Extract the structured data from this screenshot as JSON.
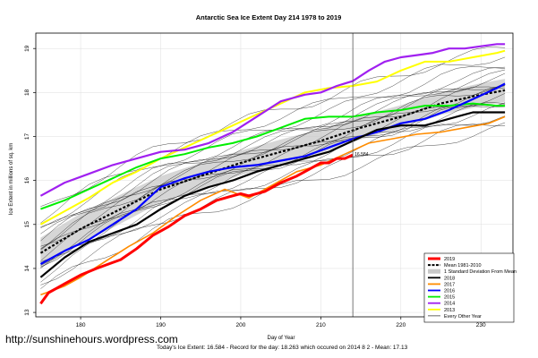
{
  "footer": {
    "watermark": "http://sunshinehours.wordpress.com",
    "summary": "Today's Ice Extent: 16.584  -  Record for the day: 18.263 which occured on 2014 8 2  -  Mean: 17.13"
  },
  "chart_data": {
    "type": "line",
    "title": "Antarctic Sea Ice Extent Day 214 1978 to 2019",
    "xlabel": "Day of Year",
    "ylabel": "Ice Extent in millions of sq. km",
    "xlim": [
      174.4,
      234
    ],
    "ylim": [
      12.9,
      19.35
    ],
    "x_ticks": [
      "180",
      "190",
      "200",
      "210",
      "220",
      "230"
    ],
    "y_ticks": [
      "13",
      "14",
      "15",
      "16",
      "17",
      "18",
      "19"
    ],
    "grid": true,
    "current_day_marker": 214,
    "current_value_label": "16.584",
    "legend_position": "bottom-right",
    "legend": [
      {
        "label": "2019",
        "color": "#ff0000",
        "style": "solid-thick"
      },
      {
        "label": "Mean 1981-2010",
        "color": "#000000",
        "style": "dashed"
      },
      {
        "label": "1 Standard Deviation From Mean",
        "color": "#c8c8c8",
        "style": "band"
      },
      {
        "label": "2018",
        "color": "#000000",
        "style": "solid"
      },
      {
        "label": "2017",
        "color": "#ff8c00",
        "style": "solid"
      },
      {
        "label": "2016",
        "color": "#0000ff",
        "style": "solid"
      },
      {
        "label": "2015",
        "color": "#00ee00",
        "style": "solid"
      },
      {
        "label": "2014",
        "color": "#a020f0",
        "style": "solid"
      },
      {
        "label": "2013",
        "color": "#ffff00",
        "style": "solid"
      },
      {
        "label": "Every Other Year",
        "color": "#000000",
        "style": "thin"
      }
    ],
    "mean": {
      "x": [
        175,
        180,
        185,
        190,
        195,
        200,
        205,
        210,
        215,
        220,
        225,
        230,
        233
      ],
      "y": [
        14.35,
        14.9,
        15.35,
        15.8,
        16.1,
        16.4,
        16.65,
        16.9,
        17.2,
        17.45,
        17.75,
        17.95,
        18.05
      ]
    },
    "sd": [
      0.35,
      0.35,
      0.33,
      0.3,
      0.3,
      0.28,
      0.28,
      0.27,
      0.27,
      0.26,
      0.26,
      0.26,
      0.26
    ],
    "series": [
      {
        "name": "2019",
        "color": "#ff0000",
        "width": 3,
        "x": [
          175,
          176,
          177,
          178,
          180,
          182,
          185,
          187,
          189,
          191,
          193,
          195,
          197,
          198,
          199,
          200,
          201,
          203,
          204,
          205,
          207,
          208,
          209,
          210,
          211,
          212,
          213,
          214
        ],
        "y": [
          13.2,
          13.45,
          13.55,
          13.65,
          13.85,
          14.0,
          14.2,
          14.45,
          14.75,
          14.95,
          15.2,
          15.35,
          15.55,
          15.6,
          15.65,
          15.7,
          15.65,
          15.75,
          15.85,
          15.95,
          16.1,
          16.2,
          16.3,
          16.4,
          16.4,
          16.5,
          16.5,
          16.58
        ]
      },
      {
        "name": "2018",
        "color": "#000000",
        "width": 2.2,
        "x": [
          175,
          178,
          181,
          184,
          187,
          190,
          193,
          196,
          199,
          202,
          205,
          208,
          211,
          214,
          217,
          220,
          223,
          226,
          229,
          232,
          233
        ],
        "y": [
          13.8,
          14.25,
          14.6,
          14.8,
          15.0,
          15.35,
          15.65,
          15.85,
          16.0,
          16.2,
          16.35,
          16.5,
          16.65,
          16.9,
          17.15,
          17.25,
          17.25,
          17.4,
          17.55,
          17.55,
          17.55
        ]
      },
      {
        "name": "2017",
        "color": "#ff8c00",
        "width": 1.6,
        "x": [
          175,
          178,
          180,
          183,
          186,
          189,
          192,
          195,
          198,
          201,
          204,
          207,
          210,
          213,
          216,
          219,
          222,
          225,
          228,
          231,
          233
        ],
        "y": [
          13.4,
          13.6,
          13.8,
          14.15,
          14.5,
          14.8,
          15.2,
          15.55,
          15.8,
          15.6,
          15.9,
          16.2,
          16.35,
          16.6,
          16.85,
          16.95,
          17.05,
          17.1,
          17.2,
          17.3,
          17.45
        ]
      },
      {
        "name": "2016",
        "color": "#0000ff",
        "width": 2.2,
        "x": [
          175,
          178,
          181,
          184,
          187,
          190,
          193,
          196,
          199,
          202,
          205,
          208,
          211,
          214,
          217,
          220,
          223,
          226,
          229,
          232,
          233
        ],
        "y": [
          14.1,
          14.4,
          14.65,
          15.0,
          15.35,
          15.85,
          16.05,
          16.2,
          16.3,
          16.35,
          16.45,
          16.55,
          16.75,
          16.95,
          17.1,
          17.3,
          17.4,
          17.6,
          17.85,
          18.1,
          18.2
        ]
      },
      {
        "name": "2015",
        "color": "#00ee00",
        "width": 2,
        "x": [
          175,
          178,
          181,
          184,
          187,
          190,
          193,
          196,
          199,
          202,
          205,
          208,
          211,
          214,
          217,
          220,
          223,
          226,
          229,
          232,
          233
        ],
        "y": [
          15.35,
          15.55,
          15.8,
          16.05,
          16.3,
          16.5,
          16.6,
          16.75,
          16.85,
          17.0,
          17.2,
          17.4,
          17.45,
          17.45,
          17.55,
          17.6,
          17.7,
          17.7,
          17.75,
          17.7,
          17.7
        ]
      },
      {
        "name": "2014",
        "color": "#a020f0",
        "width": 2.2,
        "x": [
          175,
          178,
          181,
          184,
          187,
          190,
          193,
          196,
          199,
          202,
          205,
          208,
          210,
          212,
          214,
          216,
          218,
          220,
          222,
          224,
          226,
          228,
          230,
          232,
          233
        ],
        "y": [
          15.65,
          15.95,
          16.15,
          16.35,
          16.5,
          16.65,
          16.7,
          16.85,
          17.1,
          17.45,
          17.8,
          17.95,
          18.0,
          18.15,
          18.26,
          18.5,
          18.7,
          18.8,
          18.85,
          18.9,
          19.0,
          19.0,
          19.05,
          19.1,
          19.1
        ]
      },
      {
        "name": "2013",
        "color": "#ffff00",
        "width": 2,
        "x": [
          175,
          178,
          181,
          184,
          187,
          190,
          193,
          196,
          199,
          202,
          205,
          208,
          211,
          214,
          217,
          220,
          223,
          226,
          229,
          232,
          233
        ],
        "y": [
          15.0,
          15.3,
          15.6,
          15.95,
          16.2,
          16.5,
          16.75,
          17.0,
          17.25,
          17.5,
          17.75,
          18.0,
          18.1,
          18.15,
          18.25,
          18.5,
          18.7,
          18.7,
          18.8,
          18.9,
          18.95
        ]
      }
    ]
  }
}
